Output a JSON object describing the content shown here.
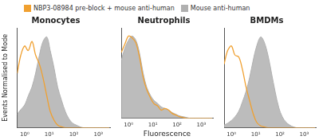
{
  "chart_data": [
    {
      "type": "line",
      "title": "Monocytes",
      "ylabel": "Events Normalised to Mode",
      "legend": "top",
      "log": "x",
      "grid": false,
      "tick_labels": "x",
      "xlim": [
        0.5,
        3000
      ],
      "ylim": [
        0,
        110
      ],
      "xticks": [
        {
          "value": 1,
          "label": "10⁰"
        },
        {
          "value": 10,
          "label": "10¹"
        },
        {
          "value": 100,
          "label": "10²"
        },
        {
          "value": 1000,
          "label": "10³"
        }
      ],
      "x": [
        0.5,
        0.7,
        1,
        1.4,
        2,
        2.8,
        4,
        5.6,
        8,
        11,
        16,
        22,
        32,
        45,
        63,
        90,
        125,
        180,
        250,
        355,
        500,
        710,
        1000,
        1400,
        2000,
        2800
      ],
      "series": [
        {
          "name": "NBP3-08984 pre-block + mouse anti-human",
          "color": "#f0a030",
          "type": "line",
          "values": [
            60,
            80,
            90,
            85,
            95,
            80,
            70,
            55,
            35,
            18,
            8,
            3,
            1,
            0,
            0,
            0,
            0,
            0,
            0,
            0,
            0,
            0,
            0,
            0,
            0,
            0
          ]
        },
        {
          "name": "Mouse anti-human",
          "color": "#b0b0b0",
          "type": "area",
          "values": [
            15,
            20,
            25,
            35,
            45,
            60,
            80,
            95,
            100,
            85,
            65,
            45,
            30,
            18,
            10,
            5,
            3,
            1,
            0,
            0,
            0,
            0,
            0,
            0,
            0,
            0
          ]
        }
      ]
    },
    {
      "type": "line",
      "title": "Neutrophils",
      "xlabel": "Fluorescence",
      "log": "x",
      "grid": false,
      "tick_labels": "x",
      "xlim": [
        0.5,
        3000
      ],
      "ylim": [
        0,
        110
      ],
      "xticks": [
        {
          "value": 1,
          "label": "10⁰"
        },
        {
          "value": 10,
          "label": "10¹"
        },
        {
          "value": 100,
          "label": "10²"
        },
        {
          "value": 1000,
          "label": "10³"
        }
      ],
      "x": [
        0.5,
        0.7,
        1,
        1.4,
        2,
        2.8,
        4,
        5.6,
        8,
        11,
        16,
        22,
        32,
        45,
        63,
        90,
        125,
        180,
        250,
        355,
        500,
        710,
        1000,
        1400,
        2000,
        2800
      ],
      "series": [
        {
          "name": "NBP3-08984 pre-block + mouse anti-human",
          "color": "#f0a030",
          "type": "line",
          "values": [
            80,
            90,
            100,
            98,
            92,
            75,
            50,
            35,
            25,
            18,
            15,
            10,
            12,
            10,
            6,
            4,
            2,
            1,
            0,
            0,
            0,
            0,
            0,
            0,
            0,
            0
          ]
        },
        {
          "name": "Mouse anti-human",
          "color": "#b0b0b0",
          "type": "area",
          "values": [
            70,
            85,
            95,
            100,
            95,
            80,
            55,
            38,
            28,
            22,
            18,
            14,
            12,
            10,
            7,
            5,
            3,
            2,
            1,
            0,
            0,
            0,
            0,
            0,
            0,
            0
          ]
        }
      ]
    },
    {
      "type": "line",
      "title": "BMDMs",
      "log": "x",
      "grid": false,
      "tick_labels": "x",
      "xlim": [
        0.5,
        3000
      ],
      "ylim": [
        0,
        110
      ],
      "xticks": [
        {
          "value": 1,
          "label": "10⁰"
        },
        {
          "value": 10,
          "label": "10¹"
        },
        {
          "value": 100,
          "label": "10²"
        },
        {
          "value": 1000,
          "label": "10³"
        }
      ],
      "x": [
        0.5,
        0.7,
        1,
        1.4,
        2,
        2.8,
        4,
        5.6,
        8,
        11,
        16,
        22,
        32,
        45,
        63,
        90,
        125,
        180,
        250,
        355,
        500,
        710,
        1000,
        1400,
        2000,
        2800
      ],
      "series": [
        {
          "name": "NBP3-08984 pre-block + mouse anti-human",
          "color": "#f0a030",
          "type": "line",
          "values": [
            70,
            85,
            90,
            80,
            78,
            65,
            45,
            30,
            15,
            6,
            2,
            1,
            0,
            0,
            0,
            0,
            0,
            0,
            0,
            0,
            0,
            0,
            0,
            0,
            0,
            0
          ]
        },
        {
          "name": "Mouse anti-human",
          "color": "#b0b0b0",
          "type": "area",
          "values": [
            3,
            5,
            8,
            12,
            18,
            28,
            40,
            55,
            75,
            90,
            100,
            95,
            80,
            60,
            40,
            22,
            12,
            6,
            3,
            1,
            0,
            0,
            0,
            0,
            0,
            0
          ]
        }
      ]
    }
  ]
}
